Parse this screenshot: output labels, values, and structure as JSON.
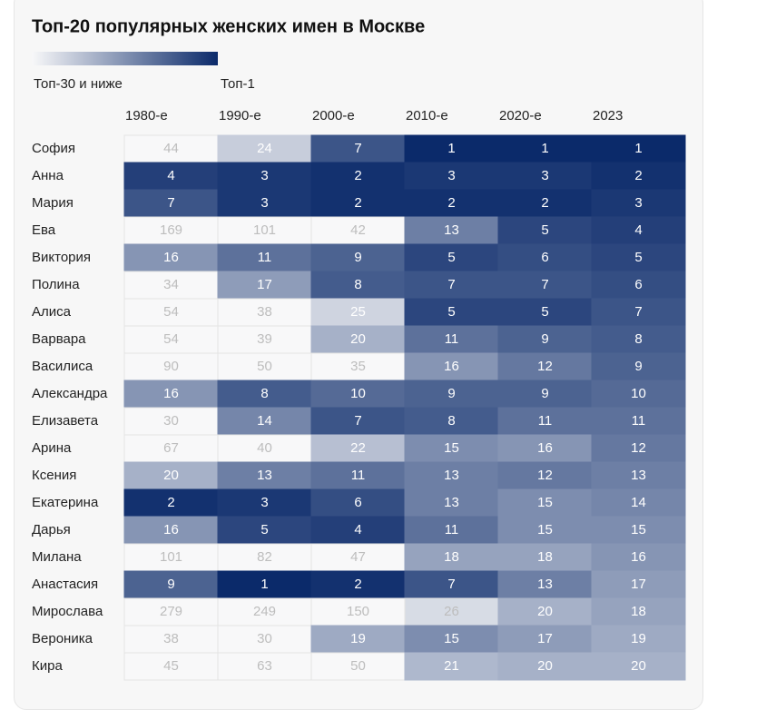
{
  "chart_data": {
    "type": "heatmap",
    "title": "Топ-20 популярных женских имен в Москве",
    "colorscale": {
      "low": {
        "value": 30,
        "label": "Топ-30 и ниже"
      },
      "high": {
        "value": 1,
        "label": "Топ-1"
      },
      "colors": [
        "#f8f8f9",
        "#0b2a6a"
      ]
    },
    "x_categories": [
      "1980-е",
      "1990-е",
      "2000-е",
      "2010-е",
      "2020-е",
      "2023"
    ],
    "y_categories": [
      "София",
      "Анна",
      "Мария",
      "Ева",
      "Виктория",
      "Полина",
      "Алиса",
      "Варвара",
      "Василиса",
      "Александра",
      "Елизавета",
      "Арина",
      "Ксения",
      "Екатерина",
      "Дарья",
      "Милана",
      "Анастасия",
      "Мирослава",
      "Вероника",
      "Кира"
    ],
    "values": [
      [
        44,
        24,
        7,
        1,
        1,
        1
      ],
      [
        4,
        3,
        2,
        3,
        3,
        2
      ],
      [
        7,
        3,
        2,
        2,
        2,
        3
      ],
      [
        169,
        101,
        42,
        13,
        5,
        4
      ],
      [
        16,
        11,
        9,
        5,
        6,
        5
      ],
      [
        34,
        17,
        8,
        7,
        7,
        6
      ],
      [
        54,
        38,
        25,
        5,
        5,
        7
      ],
      [
        54,
        39,
        20,
        11,
        9,
        8
      ],
      [
        90,
        50,
        35,
        16,
        12,
        9
      ],
      [
        16,
        8,
        10,
        9,
        9,
        10
      ],
      [
        30,
        14,
        7,
        8,
        11,
        11
      ],
      [
        67,
        40,
        22,
        15,
        16,
        12
      ],
      [
        20,
        13,
        11,
        13,
        12,
        13
      ],
      [
        2,
        3,
        6,
        13,
        15,
        14
      ],
      [
        16,
        5,
        4,
        11,
        15,
        15
      ],
      [
        101,
        82,
        47,
        18,
        18,
        16
      ],
      [
        9,
        1,
        2,
        7,
        13,
        17
      ],
      [
        279,
        249,
        150,
        26,
        20,
        18
      ],
      [
        38,
        30,
        19,
        15,
        17,
        19
      ],
      [
        45,
        63,
        50,
        21,
        20,
        20
      ]
    ]
  }
}
